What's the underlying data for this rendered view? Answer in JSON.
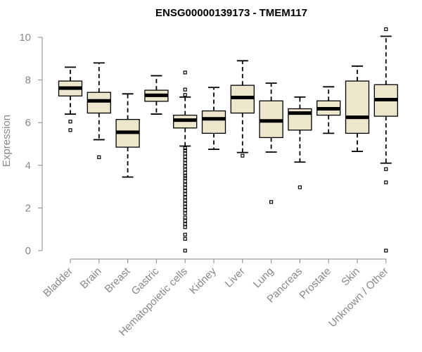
{
  "chart_data": {
    "type": "boxplot",
    "title": "ENSG00000139173 - TMEM117",
    "xlabel": "",
    "ylabel": "Expression",
    "ylim": [
      0,
      10
    ],
    "yticks": [
      0,
      2,
      4,
      6,
      8,
      10
    ],
    "box_color": "#ece6cc",
    "categories": [
      "Bladder",
      "Brain",
      "Breast",
      "Gastric",
      "Hematopoietic cells",
      "Kidney",
      "Liver",
      "Lung",
      "Pancreas",
      "Prostate",
      "Skin",
      "Unknown / Other"
    ],
    "boxes": [
      {
        "min": 6.4,
        "q1": 7.25,
        "median": 7.62,
        "q3": 7.95,
        "max": 8.6,
        "outliers": [
          6.05,
          5.65
        ]
      },
      {
        "min": 5.2,
        "q1": 6.45,
        "median": 7.02,
        "q3": 7.42,
        "max": 8.8,
        "outliers": [
          4.38
        ]
      },
      {
        "min": 3.45,
        "q1": 4.85,
        "median": 5.55,
        "q3": 6.15,
        "max": 7.35,
        "outliers": []
      },
      {
        "min": 6.4,
        "q1": 7.0,
        "median": 7.28,
        "q3": 7.52,
        "max": 8.2,
        "outliers": []
      },
      {
        "min": 4.9,
        "q1": 5.75,
        "median": 6.12,
        "q3": 6.35,
        "max": 7.2,
        "outliers": [
          8.35,
          7.55,
          7.3,
          4.8,
          4.7,
          4.55,
          4.4,
          4.25,
          4.1,
          3.95,
          3.8,
          3.65,
          3.5,
          3.4,
          3.25,
          3.1,
          2.95,
          2.8,
          2.65,
          2.5,
          2.35,
          2.2,
          2.05,
          1.9,
          1.75,
          1.55,
          1.4,
          1.25,
          1.1,
          0.75,
          0.55,
          0.0
        ]
      },
      {
        "min": 4.75,
        "q1": 5.5,
        "median": 6.18,
        "q3": 6.55,
        "max": 7.65,
        "outliers": []
      },
      {
        "min": 4.6,
        "q1": 6.45,
        "median": 7.18,
        "q3": 7.75,
        "max": 8.9,
        "outliers": [
          4.45
        ]
      },
      {
        "min": 4.62,
        "q1": 5.3,
        "median": 6.08,
        "q3": 7.02,
        "max": 7.85,
        "outliers": [
          2.28
        ]
      },
      {
        "min": 4.15,
        "q1": 5.65,
        "median": 6.45,
        "q3": 6.65,
        "max": 7.2,
        "outliers": [
          2.97
        ]
      },
      {
        "min": 5.5,
        "q1": 6.35,
        "median": 6.65,
        "q3": 7.02,
        "max": 7.68,
        "outliers": []
      },
      {
        "min": 4.65,
        "q1": 5.5,
        "median": 6.25,
        "q3": 7.95,
        "max": 8.65,
        "outliers": []
      },
      {
        "min": 4.1,
        "q1": 6.3,
        "median": 7.08,
        "q3": 7.78,
        "max": 10.05,
        "outliers": [
          10.38,
          3.82,
          3.2,
          0.0
        ]
      }
    ]
  }
}
